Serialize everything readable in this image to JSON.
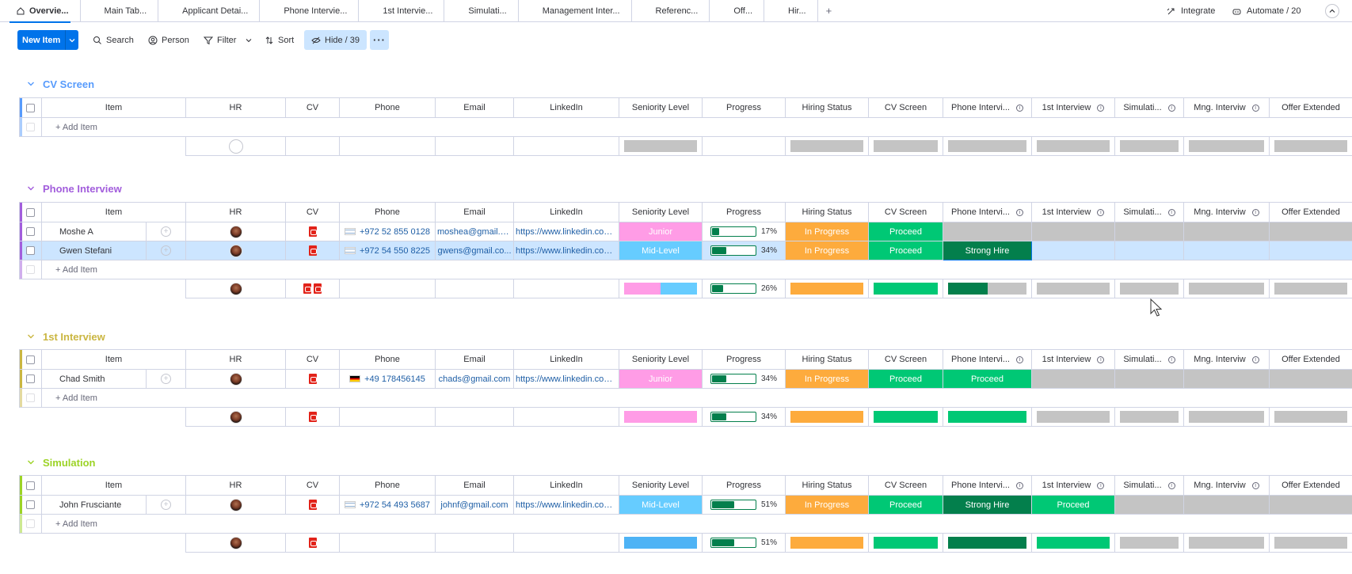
{
  "tabs": [
    {
      "label": "Overvie...",
      "icon": "home-icon"
    },
    {
      "label": "Main Tab..."
    },
    {
      "label": "Applicant Detai..."
    },
    {
      "label": "Phone Intervie..."
    },
    {
      "label": "1st Intervie..."
    },
    {
      "label": "Simulati..."
    },
    {
      "label": "Management Inter..."
    },
    {
      "label": "Referenc..."
    },
    {
      "label": "Off..."
    },
    {
      "label": "Hir..."
    }
  ],
  "tab_add": "+",
  "integrate_label": "Integrate",
  "automate_label": "Automate / 20",
  "toolbar": {
    "new_item": "New Item",
    "search": "Search",
    "person": "Person",
    "filter": "Filter",
    "sort": "Sort",
    "hide": "Hide / 39",
    "more": "···"
  },
  "columns": [
    "Item",
    "HR",
    "CV",
    "Phone",
    "Email",
    "LinkedIn",
    "Seniority Level",
    "Progress",
    "Hiring Status",
    "CV Screen",
    "Phone Intervi...",
    "1st Interview",
    "Simulati...",
    "Mng. Interviw",
    "Offer Extended"
  ],
  "add_item": "+ Add Item",
  "colors": {
    "cv_screen": "#579bfc",
    "phone_interview": "#a25ddc",
    "first_interview": "#cab641",
    "simulation": "#9cd326",
    "in_progress": "#fdab3d",
    "proceed": "#00c875",
    "strong_hire": "#037f4c",
    "junior": "#ff9ce6",
    "mid_level": "#66ccff"
  },
  "groups": {
    "cv_screen": {
      "title": "CV Screen"
    },
    "phone_interview": {
      "title": "Phone Interview",
      "rows": [
        {
          "name": "Moshe A",
          "phone": "+972 52 855 0128",
          "email": "moshea@gmail.c...",
          "linkedin": "https://www.linkedin.com/...",
          "seniority": "Junior",
          "progress": 17,
          "progress_label": "17%",
          "hiring_status": "In Progress",
          "cv_screen": "Proceed",
          "phone_interview": ""
        },
        {
          "name": "Gwen Stefani",
          "phone": "+972 54 550 8225",
          "email": "gwens@gmail.co...",
          "linkedin": "https://www.linkedin.com/...",
          "seniority": "Mid-Level",
          "progress": 34,
          "progress_label": "34%",
          "hiring_status": "In Progress",
          "cv_screen": "Proceed",
          "phone_interview": "Strong Hire"
        }
      ],
      "summary_progress": 26,
      "summary_progress_label": "26%"
    },
    "first_interview": {
      "title": "1st Interview",
      "rows": [
        {
          "name": "Chad Smith",
          "phone": "+49 178456145",
          "email": "chads@gmail.com",
          "linkedin": "https://www.linkedin.com/...",
          "seniority": "Junior",
          "progress": 34,
          "progress_label": "34%",
          "hiring_status": "In Progress",
          "cv_screen": "Proceed",
          "phone_interview": "Proceed"
        }
      ],
      "summary_progress": 34,
      "summary_progress_label": "34%"
    },
    "simulation": {
      "title": "Simulation",
      "rows": [
        {
          "name": "John Frusciante",
          "phone": "+972 54 493 5687",
          "email": "johnf@gmail.com",
          "linkedin": "https://www.linkedin.com/...",
          "seniority": "Mid-Level",
          "progress": 51,
          "progress_label": "51%",
          "hiring_status": "In Progress",
          "cv_screen": "Proceed",
          "phone_interview": "Strong Hire",
          "first_interview": "Proceed"
        }
      ],
      "summary_progress": 51,
      "summary_progress_label": "51%"
    }
  }
}
